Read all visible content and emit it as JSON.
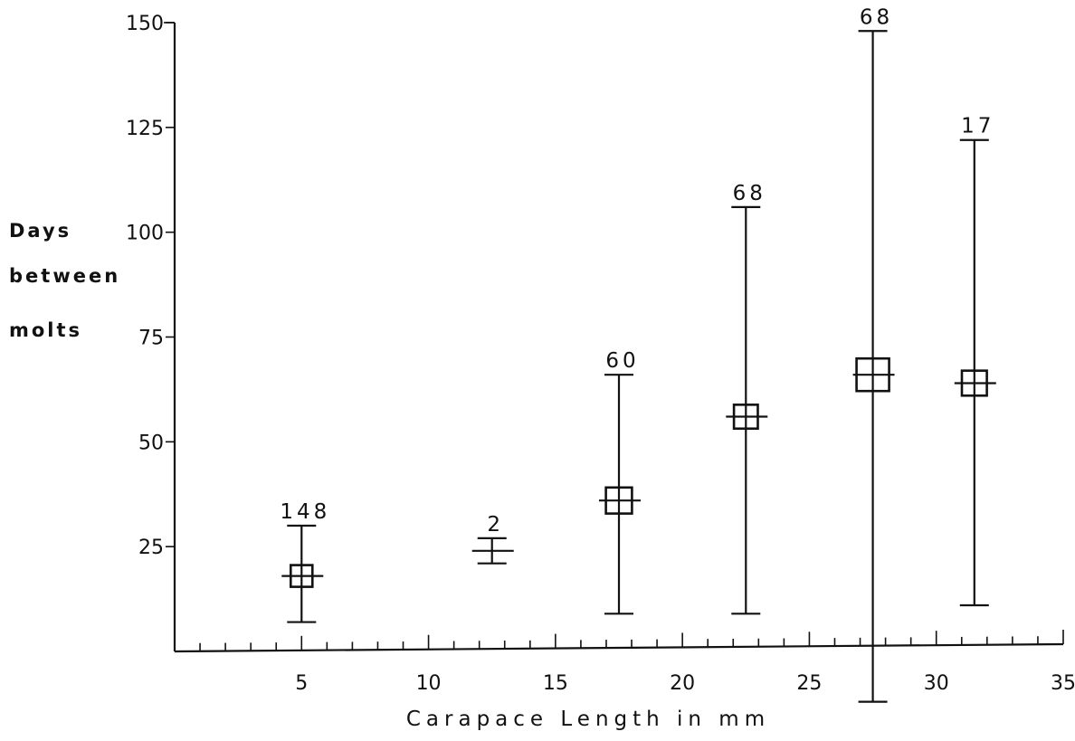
{
  "chart_data": {
    "type": "scatter",
    "title": "",
    "xlabel": "Carapace Length in mm",
    "ylabel_lines": [
      "Days",
      "between",
      "molts"
    ],
    "xlim": [
      0,
      35
    ],
    "ylim": [
      0,
      150
    ],
    "x_ticks": [
      5,
      10,
      15,
      20,
      25,
      30,
      35
    ],
    "x_tick_labels": [
      "5",
      "10",
      "15",
      "20",
      "25",
      "30",
      "35"
    ],
    "x_minor_step": 1,
    "y_ticks": [
      25,
      50,
      75,
      100,
      125,
      150
    ],
    "y_tick_labels": [
      "25",
      "50",
      "75",
      "100",
      "125",
      "150"
    ],
    "grid": false,
    "series": [
      {
        "points": [
          {
            "x": 5,
            "mean": 18,
            "min": 7,
            "max": 30,
            "n": "148",
            "box": true,
            "box_size": 1.0
          },
          {
            "x": 12.5,
            "mean": 24,
            "min": 21,
            "max": 27,
            "n": "2",
            "box": false,
            "box_size": 0
          },
          {
            "x": 17.5,
            "mean": 36,
            "min": 9,
            "max": 66,
            "n": "60",
            "box": true,
            "box_size": 1.2
          },
          {
            "x": 22.5,
            "mean": 56,
            "min": 9,
            "max": 106,
            "n": "68",
            "box": true,
            "box_size": 1.1
          },
          {
            "x": 27.5,
            "mean": 66,
            "min": -12,
            "max": 148,
            "n": "68",
            "box": true,
            "box_size": 1.5
          },
          {
            "x": 31.5,
            "mean": 64,
            "min": 11,
            "max": 122,
            "n": "17",
            "box": true,
            "box_size": 1.15
          }
        ]
      }
    ]
  }
}
